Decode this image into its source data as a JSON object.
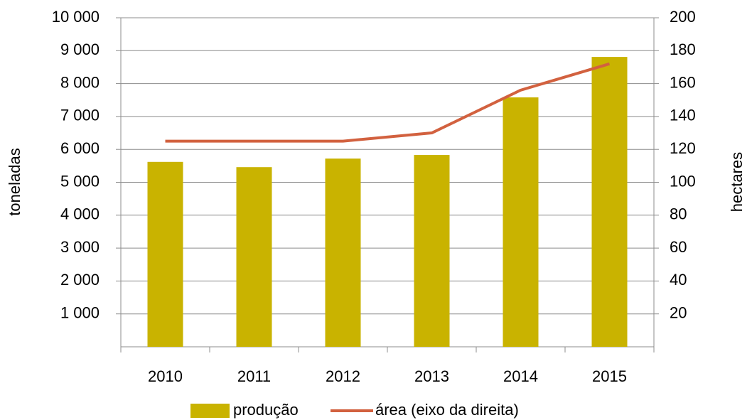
{
  "chart_data": {
    "type": "bar_line",
    "categories": [
      "2010",
      "2011",
      "2012",
      "2013",
      "2014",
      "2015"
    ],
    "series": [
      {
        "name": "produção",
        "type": "bar",
        "color": "#c9b300",
        "values": [
          5620,
          5460,
          5720,
          5830,
          7580,
          8810
        ]
      },
      {
        "name": "área (eixo da direita)",
        "type": "line",
        "axis": "y2",
        "color": "#d2613f",
        "values": [
          125,
          125,
          125,
          130,
          156,
          172
        ]
      }
    ],
    "ylabel": "toneladas",
    "y2label": "hectares",
    "ylim": [
      0,
      10000
    ],
    "yticks": [
      {
        "value": 1000,
        "label": "1 000"
      },
      {
        "value": 2000,
        "label": "2 000"
      },
      {
        "value": 3000,
        "label": "3 000"
      },
      {
        "value": 4000,
        "label": "4 000"
      },
      {
        "value": 5000,
        "label": "5 000"
      },
      {
        "value": 6000,
        "label": "6 000"
      },
      {
        "value": 7000,
        "label": "7 000"
      },
      {
        "value": 8000,
        "label": "8 000"
      },
      {
        "value": 9000,
        "label": "9 000"
      },
      {
        "value": 10000,
        "label": "10 000"
      }
    ],
    "y2lim": [
      0,
      200
    ],
    "y2ticks": [
      20,
      40,
      60,
      80,
      100,
      120,
      140,
      160,
      180,
      200
    ],
    "grid": true,
    "legend": "bottom"
  }
}
